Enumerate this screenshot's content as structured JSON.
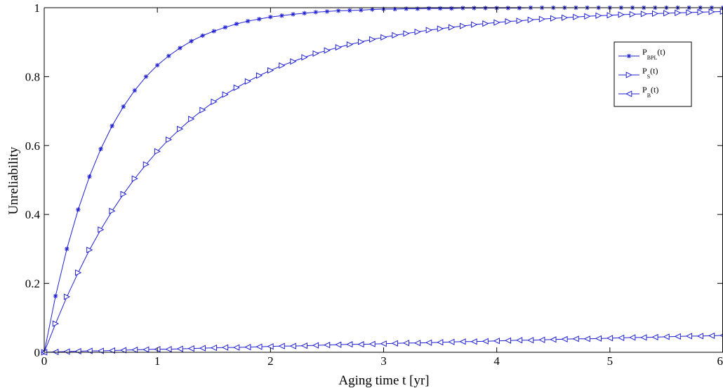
{
  "chart_data": {
    "type": "line",
    "title": "",
    "xlabel": "Aging time t [yr]",
    "ylabel": "Unreliability",
    "xlim": [
      0,
      6
    ],
    "ylim": [
      0,
      1
    ],
    "xticks": [
      0,
      1,
      2,
      3,
      4,
      5,
      6
    ],
    "xtick_labels": [
      "0",
      "1",
      "2",
      "3",
      "4",
      "5",
      "6"
    ],
    "yticks": [
      0,
      0.2,
      0.4,
      0.6,
      0.8,
      1
    ],
    "ytick_labels": [
      "0",
      "0.2",
      "0.4",
      "0.6",
      "0.8",
      "1"
    ],
    "grid": false,
    "legend_position": "top-right",
    "line_color": "#1f1fd6",
    "x": [
      0,
      0.1,
      0.2,
      0.3,
      0.4,
      0.5,
      0.6,
      0.7,
      0.8,
      0.9,
      1.0,
      1.1,
      1.2,
      1.3,
      1.4,
      1.5,
      1.6,
      1.7,
      1.8,
      1.9,
      2.0,
      2.1,
      2.2,
      2.3,
      2.4,
      2.5,
      2.6,
      2.7,
      2.8,
      2.9,
      3.0,
      3.1,
      3.2,
      3.3,
      3.4,
      3.5,
      3.6,
      3.7,
      3.8,
      3.9,
      4.0,
      4.1,
      4.2,
      4.3,
      4.4,
      4.5,
      4.6,
      4.7,
      4.8,
      4.9,
      5.0,
      5.1,
      5.2,
      5.3,
      5.4,
      5.5,
      5.6,
      5.7,
      5.8,
      5.9,
      6.0
    ],
    "series": [
      {
        "name": "P_BPL(t)",
        "label_main": "P",
        "label_sub": "BPL",
        "label_tail": "(t)",
        "marker": "star",
        "values": [
          0,
          0.163,
          0.3,
          0.414,
          0.51,
          0.59,
          0.657,
          0.713,
          0.76,
          0.8,
          0.833,
          0.86,
          0.883,
          0.903,
          0.919,
          0.932,
          0.943,
          0.953,
          0.961,
          0.967,
          0.973,
          0.977,
          0.981,
          0.984,
          0.987,
          0.989,
          0.991,
          0.992,
          0.993,
          0.995,
          0.996,
          0.996,
          0.997,
          0.997,
          0.998,
          0.998,
          0.998,
          0.999,
          0.999,
          0.999,
          0.999,
          0.999,
          0.999,
          1.0,
          1.0,
          1.0,
          1.0,
          1.0,
          1.0,
          1.0,
          1.0,
          1.0,
          1.0,
          1.0,
          1.0,
          1.0,
          1.0,
          1.0,
          1.0,
          1.0,
          1.0
        ]
      },
      {
        "name": "P_S(t)",
        "label_main": "P",
        "label_sub": "S",
        "label_tail": "(t)",
        "marker": "triangle-right",
        "values": [
          0,
          0.083,
          0.161,
          0.231,
          0.297,
          0.356,
          0.41,
          0.459,
          0.504,
          0.545,
          0.583,
          0.617,
          0.648,
          0.677,
          0.703,
          0.727,
          0.748,
          0.768,
          0.786,
          0.803,
          0.818,
          0.832,
          0.844,
          0.856,
          0.867,
          0.876,
          0.885,
          0.893,
          0.901,
          0.908,
          0.914,
          0.92,
          0.925,
          0.93,
          0.935,
          0.939,
          0.943,
          0.947,
          0.951,
          0.954,
          0.957,
          0.96,
          0.962,
          0.965,
          0.967,
          0.969,
          0.971,
          0.973,
          0.975,
          0.977,
          0.978,
          0.98,
          0.981,
          0.982,
          0.983,
          0.984,
          0.985,
          0.986,
          0.987,
          0.988,
          0.989
        ]
      },
      {
        "name": "P_B(t)",
        "label_main": "P",
        "label_sub": "B",
        "label_tail": "(t)",
        "marker": "triangle-left",
        "values": [
          0,
          0.001,
          0.002,
          0.003,
          0.004,
          0.004,
          0.005,
          0.006,
          0.007,
          0.008,
          0.009,
          0.009,
          0.01,
          0.011,
          0.012,
          0.013,
          0.014,
          0.014,
          0.015,
          0.016,
          0.017,
          0.018,
          0.018,
          0.019,
          0.02,
          0.021,
          0.022,
          0.023,
          0.023,
          0.024,
          0.025,
          0.026,
          0.027,
          0.027,
          0.028,
          0.029,
          0.03,
          0.031,
          0.031,
          0.032,
          0.033,
          0.034,
          0.035,
          0.035,
          0.036,
          0.037,
          0.038,
          0.039,
          0.039,
          0.04,
          0.041,
          0.042,
          0.043,
          0.043,
          0.044,
          0.045,
          0.046,
          0.047,
          0.047,
          0.048,
          0.049
        ]
      }
    ]
  }
}
